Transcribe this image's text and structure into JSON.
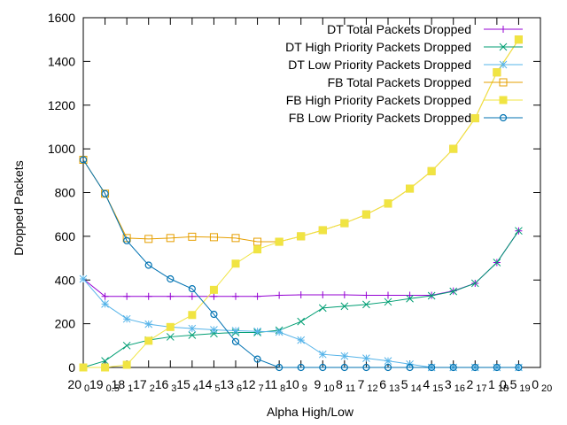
{
  "chart_data": {
    "type": "line",
    "title": "",
    "xlabel": "Alpha High/Low",
    "ylabel": "Dropped Packets",
    "ylim": [
      0,
      1600
    ],
    "yticks": [
      "0",
      "200",
      "400",
      "600",
      "800",
      "1000",
      "1200",
      "1400",
      "1600"
    ],
    "ytick_values": [
      0,
      200,
      400,
      600,
      800,
      1000,
      1200,
      1400,
      1600
    ],
    "x_points": 22,
    "xtick_labels_top": [
      "20",
      "19",
      "18",
      "17",
      "16",
      "15",
      "14",
      "13",
      "12",
      "11",
      "10",
      "9",
      "8",
      "7",
      "6",
      "5",
      "4",
      "3",
      "2",
      "1",
      "0.5",
      "0"
    ],
    "xtick_labels_bottom": [
      "0",
      "0.5",
      "1",
      "2",
      "3",
      "4",
      "5",
      "6",
      "7",
      "8",
      "9",
      "10",
      "11",
      "12",
      "13",
      "14",
      "15",
      "16",
      "17",
      "18",
      "19",
      "20"
    ],
    "grid": false,
    "legend_position": "top-right",
    "series": [
      {
        "name": "DT Total Packets Dropped",
        "color": "#9400d3",
        "marker": "plus",
        "values": [
          405,
          325,
          325,
          325,
          325,
          325,
          325,
          325,
          325,
          330,
          332,
          332,
          332,
          330,
          330,
          330,
          330,
          350,
          385,
          480,
          625,
          null
        ]
      },
      {
        "name": "DT High Priority Packets Dropped",
        "color": "#009e73",
        "marker": "x",
        "values": [
          0,
          30,
          100,
          125,
          140,
          148,
          155,
          160,
          160,
          170,
          210,
          272,
          280,
          288,
          300,
          315,
          328,
          348,
          385,
          480,
          625,
          null
        ]
      },
      {
        "name": "DT Low Priority Packets Dropped",
        "color": "#56b4e9",
        "marker": "star",
        "values": [
          405,
          290,
          222,
          198,
          185,
          178,
          172,
          168,
          165,
          162,
          125,
          60,
          52,
          42,
          30,
          15,
          0,
          0,
          0,
          0,
          0,
          null
        ]
      },
      {
        "name": "FB Total Packets Dropped",
        "color": "#e69f00",
        "marker": "square-open",
        "values": [
          950,
          795,
          592,
          588,
          592,
          598,
          596,
          592,
          575,
          575,
          600,
          628,
          660,
          700,
          750,
          818,
          898,
          1000,
          1140,
          1350,
          1500,
          null
        ]
      },
      {
        "name": "FB High Priority Packets Dropped",
        "color": "#f0e442",
        "marker": "square-filled",
        "values": [
          0,
          0,
          12,
          122,
          185,
          240,
          355,
          475,
          540,
          575,
          600,
          628,
          660,
          700,
          750,
          818,
          898,
          1000,
          1140,
          1350,
          1500,
          null
        ]
      },
      {
        "name": "FB Low Priority Packets Dropped",
        "color": "#0072b2",
        "marker": "circle-open",
        "values": [
          950,
          795,
          580,
          468,
          405,
          360,
          243,
          118,
          38,
          0,
          0,
          0,
          0,
          0,
          0,
          0,
          0,
          0,
          0,
          0,
          0,
          null
        ]
      }
    ]
  }
}
